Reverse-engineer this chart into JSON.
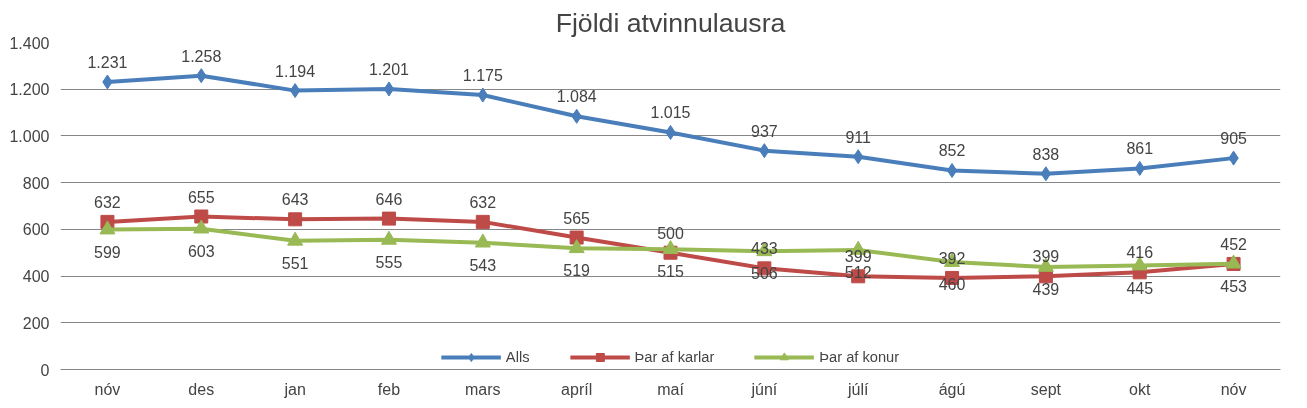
{
  "chart_data": {
    "type": "line",
    "title": "Fjöldi atvinnulausra",
    "categories": [
      "nóv",
      "des",
      "jan",
      "feb",
      "mars",
      "apríl",
      "maí",
      "júní",
      "júlí",
      "ágú",
      "sept",
      "okt",
      "nóv"
    ],
    "series": [
      {
        "name": "Alls",
        "color": "#4a7ebb",
        "marker": "diamond",
        "values": [
          1231,
          1258,
          1194,
          1201,
          1175,
          1084,
          1015,
          937,
          911,
          852,
          838,
          861,
          905
        ],
        "value_labels": [
          "1.231",
          "1.258",
          "1.194",
          "1.201",
          "1.175",
          "1.084",
          "1.015",
          "937",
          "911",
          "852",
          "838",
          "861",
          "905"
        ]
      },
      {
        "name": "Þar af karlar",
        "color": "#be4b48",
        "marker": "square",
        "values": [
          632,
          655,
          643,
          646,
          632,
          565,
          500,
          433,
          399,
          392,
          399,
          416,
          452
        ],
        "value_labels": [
          "632",
          "655",
          "643",
          "646",
          "632",
          "565",
          "500",
          "433",
          "399",
          "392",
          "399",
          "416",
          "452"
        ]
      },
      {
        "name": "Þar af konur",
        "color": "#98b954",
        "marker": "triangle",
        "values": [
          599,
          603,
          551,
          555,
          543,
          519,
          515,
          506,
          512,
          460,
          439,
          445,
          453
        ],
        "value_labels": [
          "599",
          "603",
          "551",
          "555",
          "543",
          "519",
          "515",
          "506",
          "512",
          "460",
          "439",
          "445",
          "453"
        ]
      }
    ],
    "ylim": [
      0,
      1400
    ],
    "yticks": [
      0,
      200,
      400,
      600,
      800,
      {
        "value": 1000,
        "label": "1.000"
      },
      {
        "value": 1200,
        "label": "1.200"
      },
      {
        "value": 1400,
        "label": "1.400"
      }
    ],
    "grid": "y",
    "legend": "bottom"
  }
}
